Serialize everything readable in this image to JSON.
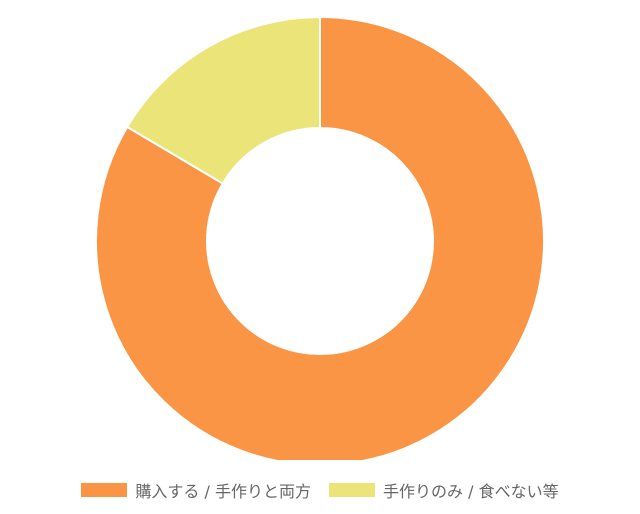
{
  "chart_data": {
    "type": "pie",
    "donut": true,
    "categories": [
      "購入する / 手作りと両方",
      "手作りのみ / 食べない等"
    ],
    "values": [
      83.5,
      16.5
    ],
    "colors": [
      "#FA9545",
      "#EBE479"
    ],
    "legend_position": "bottom",
    "title": ""
  },
  "legend": {
    "items": [
      {
        "label": "購入する / 手作りと両方",
        "color": "#FA9545"
      },
      {
        "label": "手作りのみ / 食べない等",
        "color": "#EBE479"
      }
    ]
  }
}
